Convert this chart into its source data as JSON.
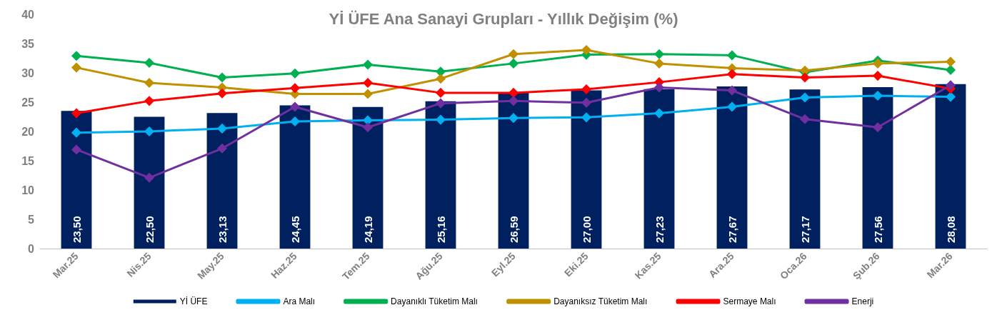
{
  "chart_data": {
    "type": "bar",
    "title": "Yİ ÜFE Ana Sanayi Grupları - Yıllık Değişim (%)",
    "categories": [
      "Mar.25",
      "Nis.25",
      "May.25",
      "Haz.25",
      "Tem.25",
      "Ağu.25",
      "Eyl.25",
      "Eki.25",
      "Kas.25",
      "Ara.25",
      "Oca.26",
      "Şub.26",
      "Mar.26"
    ],
    "series": [
      {
        "name": "Yİ ÜFE",
        "color": "#002060",
        "values": [
          23.5,
          22.5,
          23.13,
          24.45,
          24.19,
          25.16,
          26.59,
          27.0,
          27.23,
          27.67,
          27.17,
          27.56,
          28.08
        ],
        "value_labels": [
          "23,50",
          "22,50",
          "23,13",
          "24,45",
          "24,19",
          "25,16",
          "26,59",
          "27,00",
          "27,23",
          "27,67",
          "27,17",
          "27,56",
          "28,08"
        ]
      },
      {
        "name": "Ara Malı",
        "type": "line",
        "color": "#00b0f0",
        "values": [
          19.8,
          20.0,
          20.5,
          21.7,
          21.9,
          22.0,
          22.3,
          22.4,
          23.1,
          24.2,
          25.8,
          26.1,
          25.9
        ]
      },
      {
        "name": "Dayanıklı Tüketim Malı",
        "type": "line",
        "color": "#00b050",
        "values": [
          32.9,
          31.7,
          29.2,
          29.9,
          31.4,
          30.2,
          31.6,
          33.1,
          33.2,
          33.0,
          30.1,
          32.1,
          30.5
        ]
      },
      {
        "name": "Dayanıksız Tüketim Malı",
        "type": "line",
        "color": "#bf9000",
        "values": [
          30.9,
          28.3,
          27.5,
          26.4,
          26.4,
          29.0,
          33.2,
          33.9,
          31.6,
          30.8,
          30.4,
          31.6,
          31.9
        ]
      },
      {
        "name": "Sermaye Malı",
        "type": "line",
        "color": "#ff0000",
        "values": [
          23.1,
          25.2,
          26.5,
          27.4,
          28.3,
          26.6,
          26.6,
          27.2,
          28.4,
          29.8,
          29.2,
          29.5,
          27.3
        ]
      },
      {
        "name": "Enerji",
        "type": "line",
        "color": "#7030a0",
        "values": [
          16.9,
          12.1,
          17.1,
          24.2,
          20.7,
          24.8,
          25.2,
          24.9,
          27.5,
          27.0,
          22.1,
          20.7,
          27.9
        ]
      }
    ],
    "ylim": [
      0,
      40
    ],
    "yticks": [
      0,
      5,
      10,
      15,
      20,
      25,
      30,
      35,
      40
    ],
    "grid": false,
    "legend": "bottom",
    "marker": "diamond",
    "line_style": "solid"
  }
}
